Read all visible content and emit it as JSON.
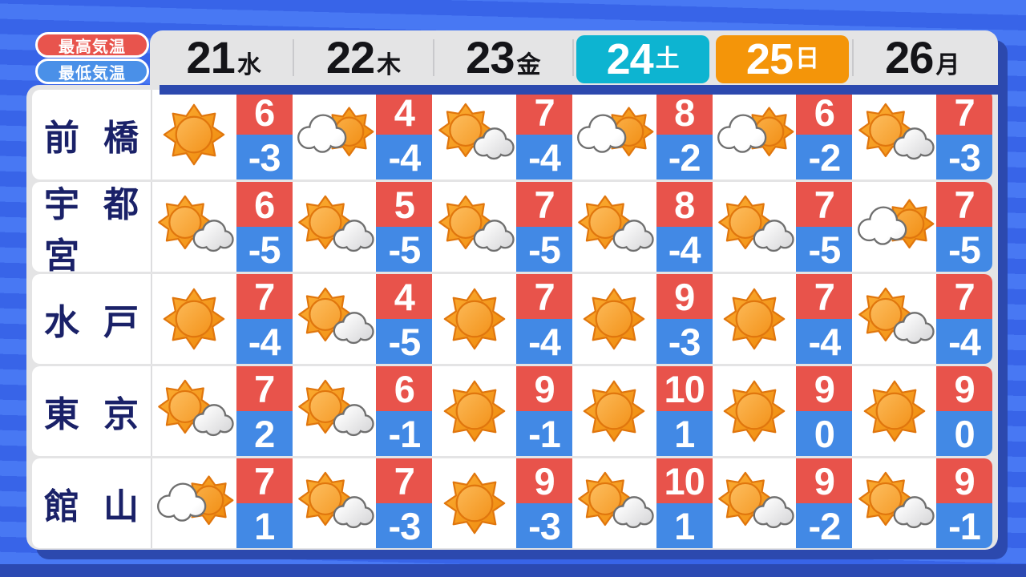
{
  "legend": {
    "high_label": "最高気温",
    "low_label": "最低気温"
  },
  "header": {
    "days": [
      {
        "date": "21",
        "weekday": "水",
        "highlight": "none"
      },
      {
        "date": "22",
        "weekday": "木",
        "highlight": "none"
      },
      {
        "date": "23",
        "weekday": "金",
        "highlight": "none"
      },
      {
        "date": "24",
        "weekday": "土",
        "highlight": "saturday"
      },
      {
        "date": "25",
        "weekday": "日",
        "highlight": "sunday"
      },
      {
        "date": "26",
        "weekday": "月",
        "highlight": "none"
      }
    ]
  },
  "colors": {
    "temp_high_bg": "#E8534B",
    "temp_low_bg": "#4289E5",
    "saturday_bg": "#0DB4D1",
    "sunday_bg": "#F49509",
    "legend_high_bg": "#E8544D",
    "legend_low_bg": "#4A90E8",
    "city_text": "#1A2168"
  },
  "chart_data": {
    "type": "table",
    "columns": [
      "21水",
      "22木",
      "23金",
      "24土",
      "25日",
      "26月"
    ],
    "rows": [
      {
        "city": "前橋",
        "cells": [
          {
            "icon": "sunny",
            "high": 6,
            "low": -3
          },
          {
            "icon": "cloudy-then-sunny",
            "high": 4,
            "low": -4
          },
          {
            "icon": "sunny-then-cloudy",
            "high": 7,
            "low": -4
          },
          {
            "icon": "cloudy-then-sunny",
            "high": 8,
            "low": -2
          },
          {
            "icon": "cloudy-then-sunny",
            "high": 6,
            "low": -2
          },
          {
            "icon": "sunny-then-cloudy",
            "high": 7,
            "low": -3
          }
        ]
      },
      {
        "city": "宇都宮",
        "cells": [
          {
            "icon": "sunny-then-cloudy",
            "high": 6,
            "low": -5
          },
          {
            "icon": "sunny-then-cloudy",
            "high": 5,
            "low": -5
          },
          {
            "icon": "sunny-then-cloudy",
            "high": 7,
            "low": -5
          },
          {
            "icon": "sunny-then-cloudy",
            "high": 8,
            "low": -4
          },
          {
            "icon": "sunny-then-cloudy",
            "high": 7,
            "low": -5
          },
          {
            "icon": "cloudy-then-sunny",
            "high": 7,
            "low": -5
          }
        ]
      },
      {
        "city": "水戸",
        "cells": [
          {
            "icon": "sunny",
            "high": 7,
            "low": -4
          },
          {
            "icon": "sunny-then-cloudy",
            "high": 4,
            "low": -5
          },
          {
            "icon": "sunny",
            "high": 7,
            "low": -4
          },
          {
            "icon": "sunny",
            "high": 9,
            "low": -3
          },
          {
            "icon": "sunny",
            "high": 7,
            "low": -4
          },
          {
            "icon": "sunny-then-cloudy",
            "high": 7,
            "low": -4
          }
        ]
      },
      {
        "city": "東京",
        "cells": [
          {
            "icon": "sunny-then-cloudy",
            "high": 7,
            "low": 2
          },
          {
            "icon": "sunny-then-cloudy",
            "high": 6,
            "low": -1
          },
          {
            "icon": "sunny",
            "high": 9,
            "low": -1
          },
          {
            "icon": "sunny",
            "high": 10,
            "low": 1
          },
          {
            "icon": "sunny",
            "high": 9,
            "low": 0
          },
          {
            "icon": "sunny",
            "high": 9,
            "low": 0
          }
        ]
      },
      {
        "city": "館山",
        "cells": [
          {
            "icon": "cloudy-then-sunny",
            "high": 7,
            "low": 1
          },
          {
            "icon": "sunny-then-cloudy",
            "high": 7,
            "low": -3
          },
          {
            "icon": "sunny",
            "high": 9,
            "low": -3
          },
          {
            "icon": "sunny-then-cloudy",
            "high": 10,
            "low": 1
          },
          {
            "icon": "sunny-then-cloudy",
            "high": 9,
            "low": -2
          },
          {
            "icon": "sunny-then-cloudy",
            "high": 9,
            "low": -1
          }
        ]
      }
    ]
  }
}
